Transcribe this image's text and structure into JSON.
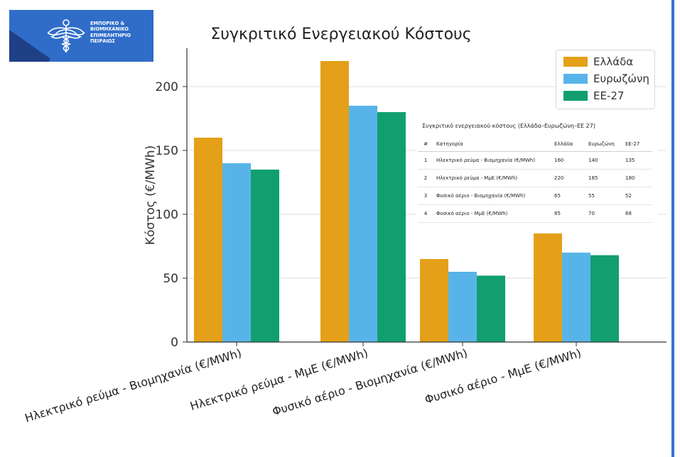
{
  "logo": {
    "lines": [
      "ΕΜΠΟΡΙΚΟ &",
      "ΒΙΟΜΗΧΑΝΙΚΟ",
      "ΕΠΙΜΕΛΗΤΗΡΙΟ",
      "ΠΕΙΡΑΙΩΣ"
    ]
  },
  "chart_data": {
    "type": "bar",
    "title": "Συγκριτικό Ενεργειακού Κόστους",
    "xlabel": "",
    "ylabel": "Κόστος (€/MWh)",
    "ylim": [
      0,
      230
    ],
    "yticks": [
      0,
      50,
      100,
      150,
      200
    ],
    "categories": [
      "Ηλεκτρικό ρεύμα - Βιομηχανία (€/MWh)",
      "Ηλεκτρικό ρεύμα - ΜμΕ (€/MWh)",
      "Φυσικό αέριο - Βιομηχανία (€/MWh)",
      "Φυσικό αέριο - ΜμΕ (€/MWh)"
    ],
    "series": [
      {
        "name": "Ελλάδα",
        "values": [
          160,
          220,
          65,
          85
        ],
        "color": "#E4A018"
      },
      {
        "name": "Ευρωζώνη",
        "values": [
          140,
          185,
          55,
          70
        ],
        "color": "#58B4E8"
      },
      {
        "name": "ΕΕ-27",
        "values": [
          135,
          180,
          52,
          68
        ],
        "color": "#119F70"
      }
    ],
    "grid": true,
    "legend": "top-right"
  },
  "table": {
    "caption": "Συγκριτικό ενεργειακού κόστους (Ελλάδα–Ευρωζώνη–ΕΕ 27)",
    "headers": [
      "#",
      "Κατηγορία",
      "Ελλάδα",
      "Ευρωζώνη",
      "ΕΕ-27"
    ],
    "rows": [
      [
        "1",
        "Ηλεκτρικό ρεύμα - Βιομηχανία (€/MWh)",
        "160",
        "140",
        "135"
      ],
      [
        "2",
        "Ηλεκτρικό ρεύμα - ΜμΕ (€/MWh)",
        "220",
        "185",
        "180"
      ],
      [
        "3",
        "Φυσικό αέριο - Βιομηχανία (€/MWh)",
        "65",
        "55",
        "52"
      ],
      [
        "4",
        "Φυσικό αέριο - ΜμΕ (€/MWh)",
        "85",
        "70",
        "68"
      ]
    ]
  }
}
